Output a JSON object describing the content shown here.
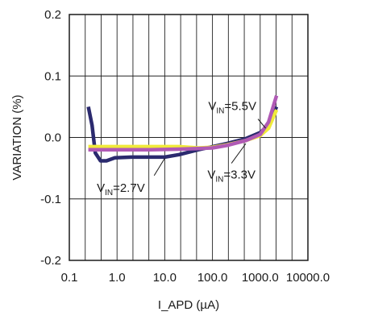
{
  "chart_data": {
    "type": "line",
    "xlabel": "I_APD (µA)",
    "ylabel": "VARIATION (%)",
    "xscale": "log",
    "xlim": [
      0.1,
      10000
    ],
    "ylim": [
      -0.2,
      0.2
    ],
    "grid": true,
    "x_tick_labels": [
      "0.1",
      "1.0",
      "10.0",
      "100.0",
      "1000.0",
      "10000.0"
    ],
    "x_tick_values": [
      0.1,
      1,
      10,
      100,
      1000,
      10000
    ],
    "y_tick_labels": [
      "-0.2",
      "-0.1",
      "0.0",
      "0.1",
      "0.2"
    ],
    "y_tick_values": [
      -0.2,
      -0.1,
      0.0,
      0.1,
      0.2
    ],
    "series": [
      {
        "color": "#2b2a6e",
        "points": [
          [
            0.25,
            0.05
          ],
          [
            0.3,
            0.02
          ],
          [
            0.35,
            -0.025
          ],
          [
            0.45,
            -0.038
          ],
          [
            0.6,
            -0.038
          ],
          [
            0.9,
            -0.033
          ],
          [
            2,
            -0.032
          ],
          [
            5,
            -0.032
          ],
          [
            10,
            -0.032
          ],
          [
            20,
            -0.028
          ],
          [
            50,
            -0.02
          ],
          [
            100,
            -0.015
          ],
          [
            200,
            -0.01
          ],
          [
            500,
            -0.002
          ],
          [
            1000,
            0.008
          ],
          [
            1500,
            0.02
          ],
          [
            2200,
            0.05
          ]
        ]
      },
      {
        "color": "#f0ea3a",
        "points": [
          [
            0.25,
            -0.015
          ],
          [
            0.5,
            -0.015
          ],
          [
            1,
            -0.015
          ],
          [
            5,
            -0.015
          ],
          [
            20,
            -0.015
          ],
          [
            50,
            -0.017
          ],
          [
            100,
            -0.016
          ],
          [
            200,
            -0.012
          ],
          [
            500,
            -0.005
          ],
          [
            1000,
            0.003
          ],
          [
            1500,
            0.015
          ],
          [
            2200,
            0.045
          ]
        ]
      },
      {
        "color": "#b05ab5",
        "points": [
          [
            0.25,
            -0.02
          ],
          [
            0.5,
            -0.02
          ],
          [
            1,
            -0.02
          ],
          [
            5,
            -0.02
          ],
          [
            20,
            -0.019
          ],
          [
            50,
            -0.018
          ],
          [
            100,
            -0.017
          ],
          [
            200,
            -0.013
          ],
          [
            500,
            -0.005
          ],
          [
            1000,
            0.005
          ],
          [
            1500,
            0.025
          ],
          [
            2200,
            0.068
          ]
        ]
      }
    ],
    "annotations": [
      {
        "main": "V",
        "sub": "IN",
        "tail": "=5.5V",
        "x": 260,
        "y": 0.051,
        "pointer": [
          [
            900,
            0.03
          ],
          [
            1300,
            0.015
          ]
        ]
      },
      {
        "main": "V",
        "sub": "IN",
        "tail": "=3.3V",
        "x": 250,
        "y": -0.06,
        "pointer": [
          [
            250,
            -0.042
          ],
          [
            500,
            -0.01
          ]
        ]
      },
      {
        "main": "V",
        "sub": "IN",
        "tail": "=2.7V",
        "x": 1.2,
        "y": -0.082,
        "pointer": [
          [
            6,
            -0.062
          ],
          [
            10,
            -0.034
          ]
        ]
      }
    ]
  }
}
